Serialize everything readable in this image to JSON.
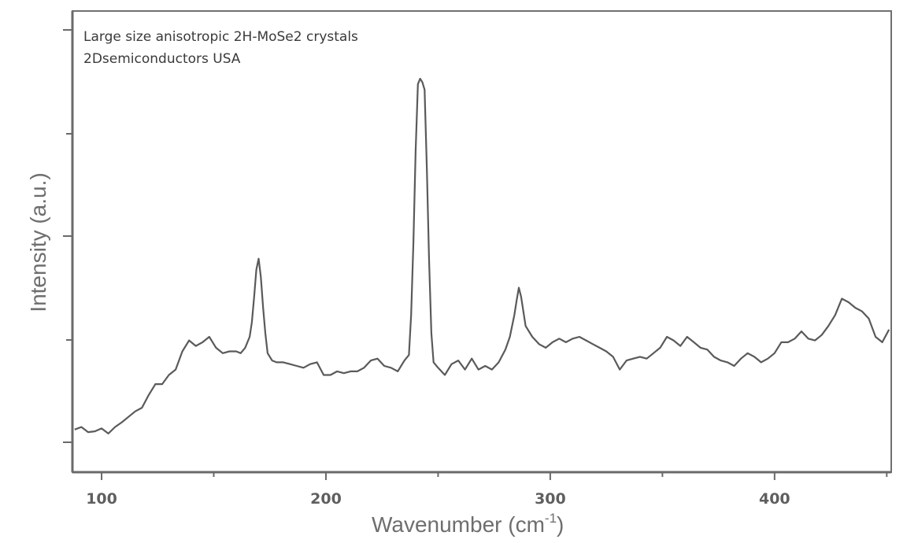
{
  "chart_data": {
    "type": "line",
    "annotations": [
      "Large size anisotropic 2H-MoSe2 crystals",
      "2Dsemiconductors USA"
    ],
    "xlabel": "Wavenumber (cm",
    "xlabel_sup": "-1",
    "xlabel_tail": ")",
    "ylabel": "Intensity (a.u.)",
    "xlim": [
      87,
      452
    ],
    "ylim": [
      0,
      10
    ],
    "x_ticks": [
      100,
      200,
      300,
      400
    ],
    "x_tick_labels": [
      "100",
      "200",
      "300",
      "400"
    ],
    "y_ticks_unlabeled": true,
    "grid": false,
    "line_color": "#5a5a5a",
    "series": [
      {
        "x": [
          88,
          91,
          94,
          97,
          100,
          103,
          106,
          109,
          112,
          115,
          118,
          121,
          124,
          127,
          130,
          133,
          136,
          139,
          142,
          145,
          148,
          151,
          154,
          157,
          160,
          162,
          164,
          166,
          167,
          168,
          169,
          170,
          171,
          172,
          173,
          174,
          176,
          178,
          181,
          184,
          187,
          190,
          193,
          196,
          199,
          202,
          205,
          208,
          211,
          214,
          217,
          220,
          223,
          226,
          229,
          232,
          235,
          237,
          238,
          239,
          240,
          241,
          242,
          243,
          244,
          245,
          246,
          247,
          248,
          250,
          253,
          256,
          259,
          262,
          265,
          268,
          271,
          274,
          277,
          280,
          282,
          284,
          285,
          286,
          287,
          289,
          292,
          295,
          298,
          301,
          304,
          307,
          310,
          313,
          316,
          319,
          322,
          325,
          328,
          331,
          334,
          337,
          340,
          343,
          346,
          349,
          352,
          355,
          358,
          361,
          364,
          367,
          370,
          373,
          376,
          379,
          382,
          385,
          388,
          391,
          394,
          397,
          400,
          403,
          406,
          409,
          412,
          415,
          418,
          421,
          424,
          427,
          430,
          433,
          436,
          439,
          442,
          445,
          448,
          451
        ],
        "y": [
          0.35,
          0.42,
          0.28,
          0.3,
          0.38,
          0.24,
          0.42,
          0.55,
          0.7,
          0.85,
          0.95,
          1.3,
          1.6,
          1.6,
          1.85,
          2.0,
          2.5,
          2.8,
          2.65,
          2.75,
          2.9,
          2.6,
          2.45,
          2.5,
          2.5,
          2.45,
          2.6,
          2.9,
          3.3,
          4.0,
          4.75,
          5.05,
          4.55,
          3.7,
          3.0,
          2.45,
          2.25,
          2.2,
          2.2,
          2.15,
          2.1,
          2.05,
          2.15,
          2.2,
          1.85,
          1.85,
          1.95,
          1.9,
          1.95,
          1.95,
          2.05,
          2.25,
          2.3,
          2.1,
          2.05,
          1.95,
          2.25,
          2.4,
          3.5,
          5.5,
          8.0,
          9.85,
          10.0,
          9.9,
          9.7,
          7.5,
          5.0,
          3.0,
          2.2,
          2.05,
          1.85,
          2.15,
          2.25,
          2.0,
          2.3,
          2.0,
          2.1,
          2.0,
          2.2,
          2.55,
          2.9,
          3.5,
          3.9,
          4.25,
          4.0,
          3.2,
          2.9,
          2.7,
          2.6,
          2.75,
          2.85,
          2.75,
          2.85,
          2.9,
          2.8,
          2.7,
          2.6,
          2.5,
          2.35,
          2.0,
          2.25,
          2.3,
          2.35,
          2.3,
          2.45,
          2.6,
          2.9,
          2.8,
          2.65,
          2.9,
          2.75,
          2.6,
          2.55,
          2.35,
          2.25,
          2.2,
          2.1,
          2.3,
          2.45,
          2.35,
          2.2,
          2.3,
          2.45,
          2.75,
          2.75,
          2.85,
          3.05,
          2.85,
          2.8,
          2.95,
          3.2,
          3.5,
          3.95,
          3.85,
          3.7,
          3.6,
          3.4,
          2.9,
          2.75,
          3.1
        ]
      }
    ]
  }
}
